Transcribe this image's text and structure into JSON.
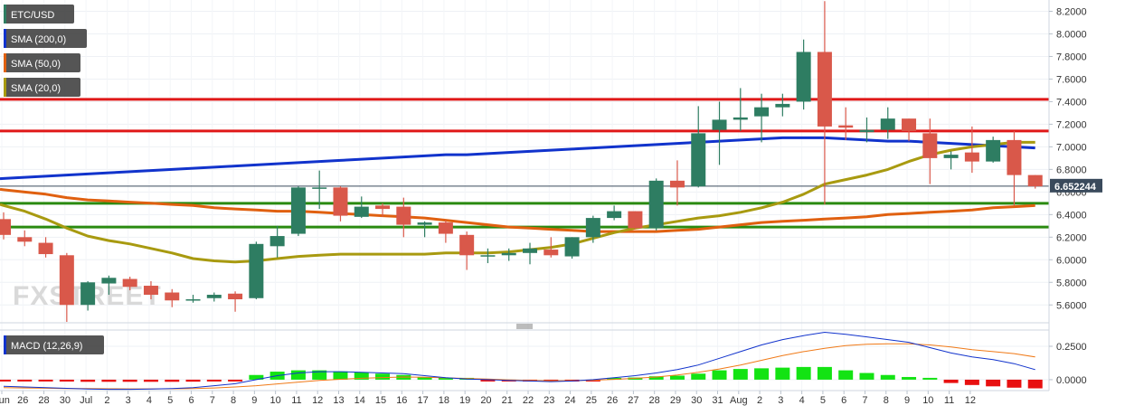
{
  "chart_data": {
    "type": "candlestick",
    "symbol": "ETC/USD",
    "watermark": "FXSTREET",
    "last_price": "6.652244",
    "price_axis": {
      "ylim": [
        5.45,
        8.3
      ],
      "ticks": [
        "8.2000",
        "8.0000",
        "7.8000",
        "7.6000",
        "7.4000",
        "7.2000",
        "7.0000",
        "6.8000",
        "6.6000",
        "6.4000",
        "6.2000",
        "6.0000",
        "5.8000",
        "5.6000"
      ]
    },
    "macd_axis": {
      "ylim": [
        -0.075,
        0.365
      ],
      "ticks": [
        "0.2500",
        "0.0000"
      ]
    },
    "x_labels": [
      "Jun",
      "26",
      "28",
      "30",
      "Jul",
      "2",
      "3",
      "4",
      "5",
      "6",
      "7",
      "8",
      "9",
      "10",
      "11",
      "12",
      "13",
      "14",
      "15",
      "16",
      "17",
      "18",
      "19",
      "20",
      "21",
      "22",
      "23",
      "24",
      "25",
      "26",
      "27",
      "28",
      "29",
      "30",
      "31",
      "Aug",
      "2",
      "3",
      "4",
      "5",
      "6",
      "7",
      "8",
      "9",
      "10",
      "11",
      "12"
    ],
    "candles": [
      {
        "o": 6.36,
        "h": 6.42,
        "l": 6.18,
        "c": 6.22
      },
      {
        "o": 6.2,
        "h": 6.26,
        "l": 6.12,
        "c": 6.16
      },
      {
        "o": 6.15,
        "h": 6.2,
        "l": 6.02,
        "c": 6.05
      },
      {
        "o": 6.04,
        "h": 6.06,
        "l": 5.45,
        "c": 5.6
      },
      {
        "o": 5.6,
        "h": 5.81,
        "l": 5.55,
        "c": 5.8
      },
      {
        "o": 5.79,
        "h": 5.86,
        "l": 5.69,
        "c": 5.84
      },
      {
        "o": 5.83,
        "h": 5.85,
        "l": 5.73,
        "c": 5.76
      },
      {
        "o": 5.77,
        "h": 5.81,
        "l": 5.65,
        "c": 5.69
      },
      {
        "o": 5.71,
        "h": 5.74,
        "l": 5.58,
        "c": 5.64
      },
      {
        "o": 5.64,
        "h": 5.69,
        "l": 5.62,
        "c": 5.65
      },
      {
        "o": 5.66,
        "h": 5.71,
        "l": 5.63,
        "c": 5.69
      },
      {
        "o": 5.7,
        "h": 5.72,
        "l": 5.54,
        "c": 5.65
      },
      {
        "o": 5.66,
        "h": 6.16,
        "l": 5.65,
        "c": 6.14
      },
      {
        "o": 6.12,
        "h": 6.3,
        "l": 6.02,
        "c": 6.21
      },
      {
        "o": 6.23,
        "h": 6.65,
        "l": 6.21,
        "c": 6.64
      },
      {
        "o": 6.64,
        "h": 6.79,
        "l": 6.45,
        "c": 6.64
      },
      {
        "o": 6.64,
        "h": 6.65,
        "l": 6.34,
        "c": 6.39
      },
      {
        "o": 6.38,
        "h": 6.56,
        "l": 6.37,
        "c": 6.47
      },
      {
        "o": 6.48,
        "h": 6.5,
        "l": 6.38,
        "c": 6.45
      },
      {
        "o": 6.47,
        "h": 6.55,
        "l": 6.2,
        "c": 6.31
      },
      {
        "o": 6.31,
        "h": 6.34,
        "l": 6.2,
        "c": 6.33
      },
      {
        "o": 6.33,
        "h": 6.35,
        "l": 6.15,
        "c": 6.23
      },
      {
        "o": 6.22,
        "h": 6.25,
        "l": 5.91,
        "c": 6.04
      },
      {
        "o": 6.04,
        "h": 6.1,
        "l": 5.97,
        "c": 6.04
      },
      {
        "o": 6.04,
        "h": 6.1,
        "l": 5.99,
        "c": 6.06
      },
      {
        "o": 6.06,
        "h": 6.15,
        "l": 5.96,
        "c": 6.1
      },
      {
        "o": 6.09,
        "h": 6.2,
        "l": 6.02,
        "c": 6.04
      },
      {
        "o": 6.03,
        "h": 6.2,
        "l": 6.01,
        "c": 6.2
      },
      {
        "o": 6.2,
        "h": 6.39,
        "l": 6.15,
        "c": 6.37
      },
      {
        "o": 6.37,
        "h": 6.48,
        "l": 6.35,
        "c": 6.43
      },
      {
        "o": 6.43,
        "h": 6.43,
        "l": 6.27,
        "c": 6.28
      },
      {
        "o": 6.28,
        "h": 6.72,
        "l": 6.26,
        "c": 6.7
      },
      {
        "o": 6.7,
        "h": 6.88,
        "l": 6.48,
        "c": 6.64
      },
      {
        "o": 6.65,
        "h": 7.36,
        "l": 6.64,
        "c": 7.12
      },
      {
        "o": 7.15,
        "h": 7.4,
        "l": 6.84,
        "c": 7.24
      },
      {
        "o": 7.24,
        "h": 7.52,
        "l": 7.14,
        "c": 7.26
      },
      {
        "o": 7.27,
        "h": 7.47,
        "l": 7.04,
        "c": 7.35
      },
      {
        "o": 7.35,
        "h": 7.47,
        "l": 7.27,
        "c": 7.38
      },
      {
        "o": 7.4,
        "h": 7.95,
        "l": 7.33,
        "c": 7.84
      },
      {
        "o": 7.84,
        "h": 8.29,
        "l": 6.49,
        "c": 7.18
      },
      {
        "o": 7.19,
        "h": 7.35,
        "l": 7.06,
        "c": 7.17
      },
      {
        "o": 7.13,
        "h": 7.26,
        "l": 7.04,
        "c": 7.15
      },
      {
        "o": 7.15,
        "h": 7.35,
        "l": 7.07,
        "c": 7.25
      },
      {
        "o": 7.25,
        "h": 7.25,
        "l": 7.05,
        "c": 7.14
      },
      {
        "o": 7.12,
        "h": 7.25,
        "l": 6.67,
        "c": 6.9
      },
      {
        "o": 6.9,
        "h": 6.96,
        "l": 6.8,
        "c": 6.93
      },
      {
        "o": 6.95,
        "h": 7.18,
        "l": 6.77,
        "c": 6.87
      },
      {
        "o": 6.87,
        "h": 7.09,
        "l": 6.86,
        "c": 7.06
      },
      {
        "o": 7.06,
        "h": 7.14,
        "l": 6.48,
        "c": 6.75
      },
      {
        "o": 6.75,
        "h": 6.75,
        "l": 6.63,
        "c": 6.65
      }
    ],
    "indicators": [
      {
        "name": "SMA (200,0)",
        "color": "#1133cc",
        "values": [
          6.72,
          6.73,
          6.74,
          6.75,
          6.76,
          6.77,
          6.78,
          6.79,
          6.8,
          6.81,
          6.82,
          6.83,
          6.84,
          6.85,
          6.86,
          6.87,
          6.88,
          6.89,
          6.9,
          6.91,
          6.92,
          6.93,
          6.93,
          6.94,
          6.95,
          6.96,
          6.97,
          6.98,
          6.99,
          7.0,
          7.01,
          7.02,
          7.03,
          7.04,
          7.05,
          7.06,
          7.07,
          7.08,
          7.08,
          7.08,
          7.07,
          7.06,
          7.05,
          7.05,
          7.04,
          7.03,
          7.02,
          7.01,
          7.0,
          6.99
        ]
      },
      {
        "name": "SMA (50,0)",
        "color": "#e06010",
        "values": [
          6.62,
          6.6,
          6.58,
          6.55,
          6.53,
          6.52,
          6.51,
          6.5,
          6.49,
          6.48,
          6.46,
          6.45,
          6.44,
          6.43,
          6.43,
          6.42,
          6.41,
          6.4,
          6.39,
          6.38,
          6.37,
          6.35,
          6.33,
          6.31,
          6.29,
          6.28,
          6.27,
          6.26,
          6.25,
          6.25,
          6.25,
          6.25,
          6.26,
          6.27,
          6.29,
          6.31,
          6.33,
          6.34,
          6.35,
          6.36,
          6.37,
          6.38,
          6.4,
          6.41,
          6.42,
          6.43,
          6.44,
          6.46,
          6.47,
          6.48
        ]
      },
      {
        "name": "SMA (20,0)",
        "color": "#a89a10",
        "values": [
          6.48,
          6.43,
          6.36,
          6.28,
          6.21,
          6.17,
          6.14,
          6.1,
          6.06,
          6.01,
          5.99,
          5.98,
          5.99,
          6.01,
          6.03,
          6.04,
          6.05,
          6.05,
          6.05,
          6.05,
          6.05,
          6.06,
          6.06,
          6.06,
          6.07,
          6.09,
          6.11,
          6.14,
          6.19,
          6.24,
          6.28,
          6.31,
          6.34,
          6.37,
          6.39,
          6.42,
          6.46,
          6.51,
          6.58,
          6.67,
          6.71,
          6.75,
          6.8,
          6.87,
          6.93,
          6.97,
          7.0,
          7.02,
          7.04,
          7.04
        ]
      }
    ],
    "horizontal_lines": [
      {
        "value": 7.42,
        "color": "#e01818"
      },
      {
        "value": 7.14,
        "color": "#e01818"
      },
      {
        "value": 6.5,
        "color": "#2a8a10"
      },
      {
        "value": 6.29,
        "color": "#2a8a10"
      }
    ],
    "macd": {
      "name": "MACD (12,26,9)",
      "macd_line": [
        -0.05,
        -0.055,
        -0.06,
        -0.065,
        -0.07,
        -0.072,
        -0.072,
        -0.07,
        -0.066,
        -0.06,
        -0.045,
        -0.03,
        0.0,
        0.03,
        0.05,
        0.06,
        0.06,
        0.055,
        0.05,
        0.045,
        0.03,
        0.015,
        0.005,
        0.0,
        -0.005,
        -0.01,
        -0.015,
        -0.01,
        0.0,
        0.015,
        0.03,
        0.05,
        0.075,
        0.11,
        0.16,
        0.21,
        0.26,
        0.3,
        0.33,
        0.355,
        0.34,
        0.32,
        0.3,
        0.28,
        0.24,
        0.2,
        0.17,
        0.15,
        0.12,
        0.075
      ],
      "signal_line": [
        -0.06,
        -0.062,
        -0.064,
        -0.066,
        -0.067,
        -0.068,
        -0.069,
        -0.069,
        -0.068,
        -0.066,
        -0.062,
        -0.055,
        -0.045,
        -0.032,
        -0.018,
        -0.006,
        0.003,
        0.01,
        0.016,
        0.02,
        0.018,
        0.014,
        0.009,
        0.004,
        -0.001,
        -0.005,
        -0.008,
        -0.007,
        -0.004,
        0.002,
        0.01,
        0.02,
        0.035,
        0.055,
        0.08,
        0.11,
        0.145,
        0.18,
        0.21,
        0.235,
        0.255,
        0.265,
        0.268,
        0.268,
        0.26,
        0.245,
        0.225,
        0.21,
        0.195,
        0.17
      ],
      "histogram": [
        -0.008,
        -0.01,
        -0.012,
        -0.014,
        -0.016,
        -0.016,
        -0.016,
        -0.016,
        -0.016,
        -0.015,
        -0.01,
        -0.004,
        0.035,
        0.06,
        0.07,
        0.07,
        0.062,
        0.055,
        0.045,
        0.035,
        0.02,
        0.008,
        0.002,
        -0.006,
        -0.01,
        -0.012,
        -0.014,
        -0.01,
        -0.005,
        0.008,
        0.016,
        0.025,
        0.03,
        0.045,
        0.07,
        0.08,
        0.085,
        0.09,
        0.095,
        0.095,
        0.07,
        0.05,
        0.035,
        0.02,
        0.005,
        -0.025,
        -0.04,
        -0.05,
        -0.06,
        -0.065
      ]
    }
  }
}
